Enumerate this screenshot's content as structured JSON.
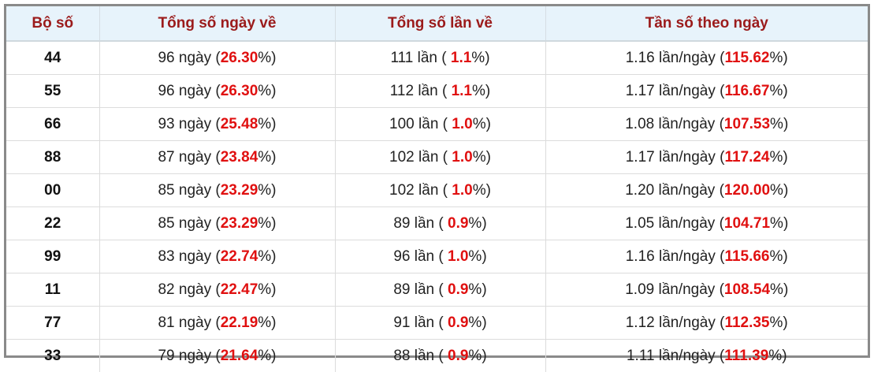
{
  "table": {
    "header": [
      "Bộ số",
      "Tổng số ngày về",
      "Tổng số lần về",
      "Tần số theo ngày"
    ],
    "rows": [
      [
        "44",
        {
          "text": "96 ngày (",
          "highlight": "26.30",
          "suffix": "%)"
        },
        {
          "text": "111 lần ( ",
          "highlight": "1.1",
          "suffix": "%)"
        },
        {
          "text": "1.16 lần/ngày (",
          "highlight": "115.62",
          "suffix": "%)"
        }
      ],
      [
        "55",
        {
          "text": "96 ngày (",
          "highlight": "26.30",
          "suffix": "%)"
        },
        {
          "text": "112 lần ( ",
          "highlight": "1.1",
          "suffix": "%)"
        },
        {
          "text": "1.17 lần/ngày (",
          "highlight": "116.67",
          "suffix": "%)"
        }
      ],
      [
        "66",
        {
          "text": "93 ngày (",
          "highlight": "25.48",
          "suffix": "%)"
        },
        {
          "text": "100 lần ( ",
          "highlight": "1.0",
          "suffix": "%)"
        },
        {
          "text": "1.08 lần/ngày (",
          "highlight": "107.53",
          "suffix": "%)"
        }
      ],
      [
        "88",
        {
          "text": "87 ngày (",
          "highlight": "23.84",
          "suffix": "%)"
        },
        {
          "text": "102 lần ( ",
          "highlight": "1.0",
          "suffix": "%)"
        },
        {
          "text": "1.17 lần/ngày (",
          "highlight": "117.24",
          "suffix": "%)"
        }
      ],
      [
        "00",
        {
          "text": "85 ngày (",
          "highlight": "23.29",
          "suffix": "%)"
        },
        {
          "text": "102 lần ( ",
          "highlight": "1.0",
          "suffix": "%)"
        },
        {
          "text": "1.20 lần/ngày (",
          "highlight": "120.00",
          "suffix": "%)"
        }
      ],
      [
        "22",
        {
          "text": "85 ngày (",
          "highlight": "23.29",
          "suffix": "%)"
        },
        {
          "text": "89 lần ( ",
          "highlight": "0.9",
          "suffix": "%)"
        },
        {
          "text": "1.05 lần/ngày (",
          "highlight": "104.71",
          "suffix": "%)"
        }
      ],
      [
        "99",
        {
          "text": "83 ngày (",
          "highlight": "22.74",
          "suffix": "%)"
        },
        {
          "text": "96 lần ( ",
          "highlight": "1.0",
          "suffix": "%)"
        },
        {
          "text": "1.16 lần/ngày (",
          "highlight": "115.66",
          "suffix": "%)"
        }
      ],
      [
        "11",
        {
          "text": "82 ngày (",
          "highlight": "22.47",
          "suffix": "%)"
        },
        {
          "text": "89 lần ( ",
          "highlight": "0.9",
          "suffix": "%)"
        },
        {
          "text": "1.09 lần/ngày (",
          "highlight": "108.54",
          "suffix": "%)"
        }
      ],
      [
        "77",
        {
          "text": "81 ngày (",
          "highlight": "22.19",
          "suffix": "%)"
        },
        {
          "text": "91 lần ( ",
          "highlight": "0.9",
          "suffix": "%)"
        },
        {
          "text": "1.12 lần/ngày (",
          "highlight": "112.35",
          "suffix": "%)"
        }
      ],
      [
        "33",
        {
          "text": "79 ngày (",
          "highlight": "21.64",
          "suffix": "%)"
        },
        {
          "text": "88 lần ( ",
          "highlight": "0.9",
          "suffix": "%)"
        },
        {
          "text": "1.11 lần/ngày (",
          "highlight": "111.39",
          "suffix": "%)"
        }
      ]
    ]
  }
}
